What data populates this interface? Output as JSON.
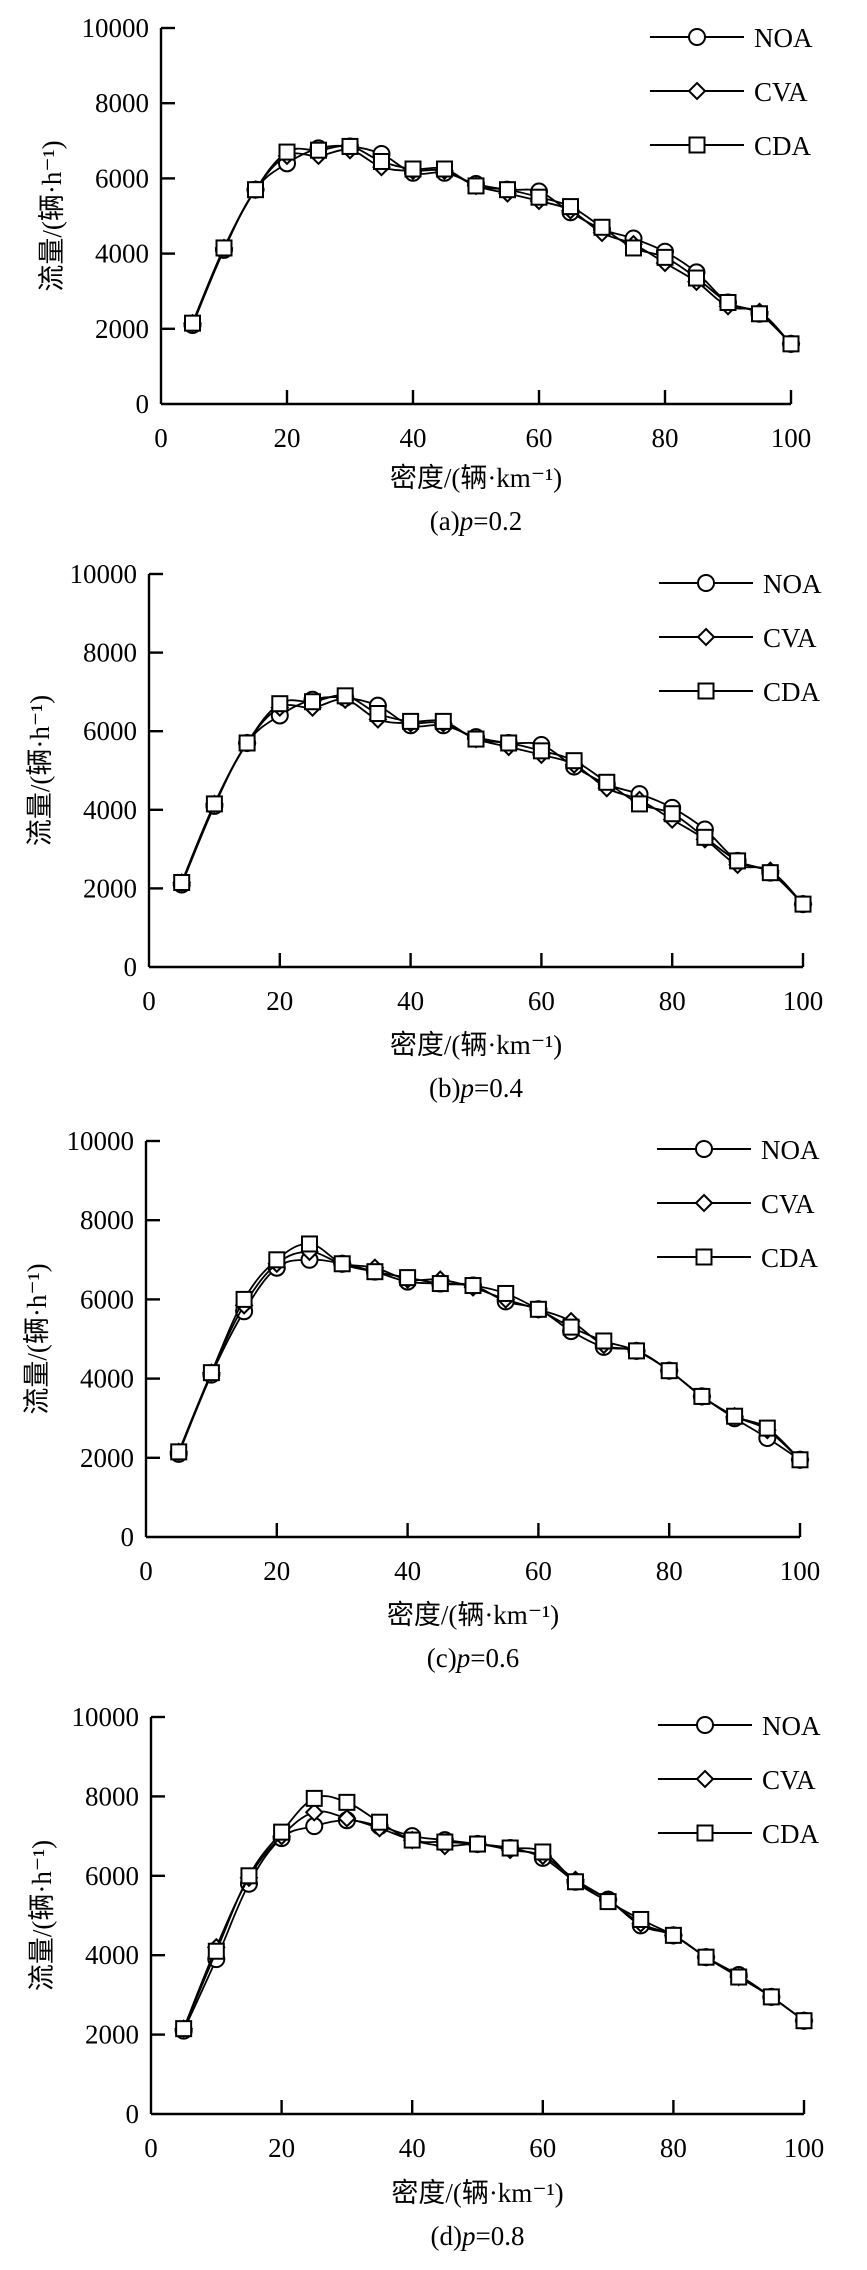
{
  "figure": {
    "legend": [
      "NOA",
      "CVA",
      "CDA"
    ],
    "markers": {
      "NOA": "circle-icon",
      "CVA": "diamond-icon",
      "CDA": "square-icon"
    }
  },
  "chart_data": [
    {
      "type": "line",
      "caption_prefix": "(a)",
      "caption_var": "p",
      "caption_value": "=0.2",
      "title": "(a)p=0.2",
      "xlabel": "密度/(辆·km⁻¹)",
      "ylabel": "流量/(辆·h⁻¹)",
      "xlim": [
        0,
        100
      ],
      "ylim": [
        0,
        10000
      ],
      "xticks": [
        0,
        20,
        40,
        60,
        80,
        100
      ],
      "yticks": [
        0,
        2000,
        4000,
        6000,
        8000,
        10000
      ],
      "grid": false,
      "legend_position": "top-right",
      "x": [
        5,
        10,
        15,
        20,
        25,
        30,
        35,
        40,
        45,
        50,
        55,
        60,
        65,
        70,
        75,
        80,
        85,
        90,
        95,
        100
      ],
      "series": [
        {
          "name": "NOA",
          "values": [
            2100,
            4100,
            5700,
            6400,
            6800,
            6850,
            6650,
            6150,
            6150,
            5850,
            5700,
            5650,
            5100,
            4650,
            4400,
            4050,
            3500,
            2700,
            2400,
            1600
          ]
        },
        {
          "name": "CVA",
          "values": [
            2150,
            4150,
            5700,
            6600,
            6600,
            6750,
            6300,
            6200,
            6200,
            5800,
            5600,
            5400,
            5150,
            4550,
            4250,
            3750,
            3250,
            2600,
            2450,
            1600
          ]
        },
        {
          "name": "CDA",
          "values": [
            2150,
            4150,
            5700,
            6700,
            6750,
            6850,
            6450,
            6250,
            6250,
            5800,
            5700,
            5500,
            5250,
            4700,
            4150,
            3900,
            3350,
            2700,
            2400,
            1600
          ]
        }
      ]
    },
    {
      "type": "line",
      "caption_prefix": "(b)",
      "caption_var": "p",
      "caption_value": "=0.4",
      "title": "(b)p=0.4",
      "xlabel": "密度/(辆·km⁻¹)",
      "ylabel": "流量/(辆·h⁻¹)",
      "xlim": [
        0,
        100
      ],
      "ylim": [
        0,
        10000
      ],
      "xticks": [
        0,
        20,
        40,
        60,
        80,
        100
      ],
      "yticks": [
        0,
        2000,
        4000,
        6000,
        8000,
        10000
      ],
      "grid": false,
      "legend_position": "top-right",
      "x": [
        5,
        10,
        15,
        20,
        25,
        30,
        35,
        40,
        45,
        50,
        55,
        60,
        65,
        70,
        75,
        80,
        85,
        90,
        95,
        100
      ],
      "series": [
        {
          "name": "NOA",
          "values": [
            2100,
            4100,
            5700,
            6400,
            6800,
            6850,
            6650,
            6150,
            6150,
            5850,
            5700,
            5650,
            5100,
            4650,
            4400,
            4050,
            3500,
            2700,
            2400,
            1600
          ]
        },
        {
          "name": "CVA",
          "values": [
            2150,
            4150,
            5700,
            6600,
            6600,
            6800,
            6300,
            6200,
            6200,
            5800,
            5600,
            5400,
            5150,
            4550,
            4250,
            3750,
            3250,
            2600,
            2450,
            1600
          ]
        },
        {
          "name": "CDA",
          "values": [
            2150,
            4150,
            5700,
            6700,
            6750,
            6900,
            6450,
            6250,
            6250,
            5800,
            5700,
            5500,
            5250,
            4700,
            4150,
            3900,
            3300,
            2700,
            2400,
            1600
          ]
        }
      ]
    },
    {
      "type": "line",
      "caption_prefix": "(c)",
      "caption_var": "p",
      "caption_value": "=0.6",
      "title": "(c)p=0.6",
      "xlabel": "密度/(辆·km⁻¹)",
      "ylabel": "流量/(辆·h⁻¹)",
      "xlim": [
        0,
        100
      ],
      "ylim": [
        0,
        10000
      ],
      "xticks": [
        0,
        20,
        40,
        60,
        80,
        100
      ],
      "yticks": [
        0,
        2000,
        4000,
        6000,
        8000,
        10000
      ],
      "grid": false,
      "legend_position": "top-right",
      "x": [
        5,
        10,
        15,
        20,
        25,
        30,
        35,
        40,
        45,
        50,
        55,
        60,
        65,
        70,
        75,
        80,
        85,
        90,
        95,
        100
      ],
      "series": [
        {
          "name": "NOA",
          "values": [
            2100,
            4100,
            5700,
            6800,
            7000,
            6900,
            6700,
            6450,
            6400,
            6350,
            5950,
            5750,
            5200,
            4800,
            4700,
            4200,
            3550,
            3000,
            2500,
            1950
          ]
        },
        {
          "name": "CVA",
          "values": [
            2150,
            4150,
            5850,
            6900,
            7200,
            6900,
            6800,
            6500,
            6500,
            6300,
            6000,
            5750,
            5450,
            4850,
            4700,
            4200,
            3550,
            3050,
            2700,
            1950
          ]
        },
        {
          "name": "CDA",
          "values": [
            2150,
            4150,
            6000,
            7000,
            7400,
            6900,
            6700,
            6550,
            6400,
            6350,
            6150,
            5750,
            5300,
            4950,
            4700,
            4200,
            3550,
            3050,
            2750,
            1950
          ]
        }
      ]
    },
    {
      "type": "line",
      "caption_prefix": "(d)",
      "caption_var": "p",
      "caption_value": "=0.8",
      "title": "(d)p=0.8",
      "xlabel": "密度/(辆·km⁻¹)",
      "ylabel": "流量/(辆·h⁻¹)",
      "xlim": [
        0,
        100
      ],
      "ylim": [
        0,
        10000
      ],
      "xticks": [
        0,
        20,
        40,
        60,
        80,
        100
      ],
      "yticks": [
        0,
        2000,
        4000,
        6000,
        8000,
        10000
      ],
      "grid": false,
      "legend_position": "top-right",
      "x": [
        5,
        10,
        15,
        20,
        25,
        30,
        35,
        40,
        45,
        50,
        55,
        60,
        65,
        70,
        75,
        80,
        85,
        90,
        95,
        100
      ],
      "series": [
        {
          "name": "NOA",
          "values": [
            2100,
            3900,
            5800,
            6950,
            7250,
            7400,
            7250,
            7000,
            6900,
            6800,
            6700,
            6450,
            5850,
            5400,
            4750,
            4500,
            3950,
            3500,
            2950,
            2350
          ]
        },
        {
          "name": "CVA",
          "values": [
            2150,
            4200,
            5950,
            7000,
            7600,
            7450,
            7200,
            6900,
            6750,
            6800,
            6650,
            6500,
            5900,
            5400,
            4800,
            4500,
            3950,
            3450,
            2950,
            2350
          ]
        },
        {
          "name": "CDA",
          "values": [
            2150,
            4100,
            6000,
            7100,
            7950,
            7850,
            7350,
            6900,
            6850,
            6800,
            6700,
            6600,
            5850,
            5350,
            4900,
            4500,
            3950,
            3450,
            2950,
            2350
          ]
        }
      ]
    }
  ]
}
